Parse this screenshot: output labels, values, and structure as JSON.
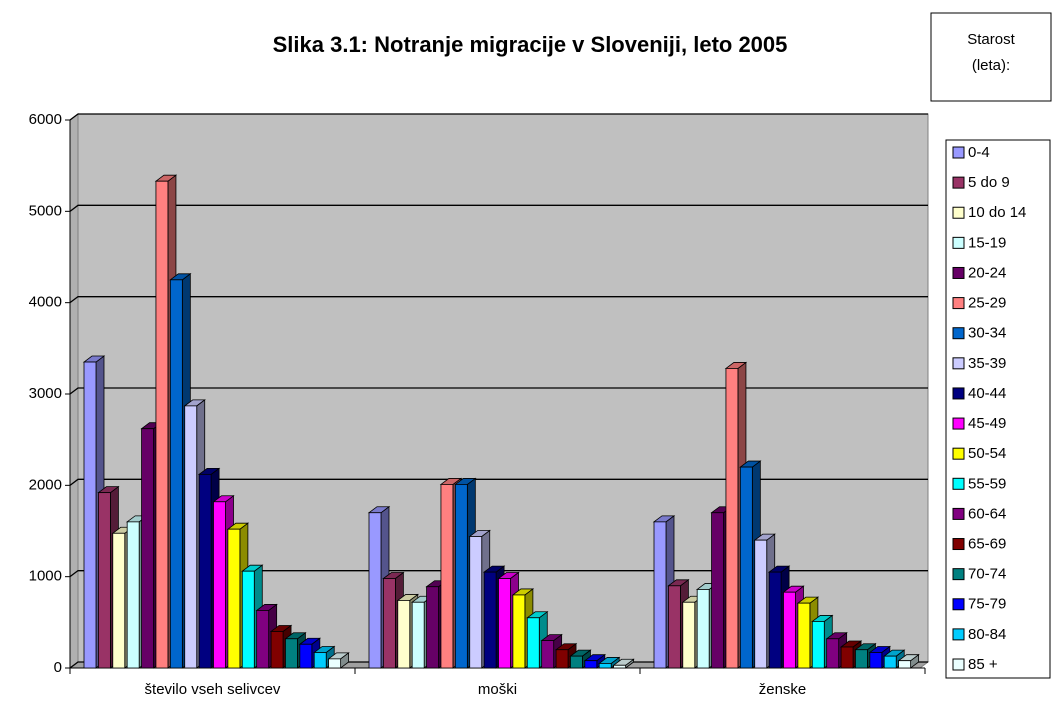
{
  "chart_data": {
    "type": "bar3d",
    "title": "Slika 3.1: Notranje migracije v Sloveniji, leto 2005",
    "legend_title": [
      "Starost",
      "(leta):"
    ],
    "categories": [
      "število vseh selivcev",
      "moški",
      "ženske"
    ],
    "ylim": [
      0,
      6000
    ],
    "yticks": [
      0,
      1000,
      2000,
      3000,
      4000,
      5000,
      6000
    ],
    "grid": true,
    "legend": "right",
    "series": [
      {
        "name": "0-4",
        "color": "#9999ff",
        "values": [
          3350,
          1700,
          1600
        ]
      },
      {
        "name": "5 do 9",
        "color": "#993366",
        "values": [
          1920,
          980,
          900
        ]
      },
      {
        "name": "10 do 14",
        "color": "#ffffcc",
        "values": [
          1475,
          740,
          720
        ]
      },
      {
        "name": "15-19",
        "color": "#ccffff",
        "values": [
          1600,
          720,
          860
        ]
      },
      {
        "name": "20-24",
        "color": "#660066",
        "values": [
          2620,
          890,
          1700
        ]
      },
      {
        "name": "25-29",
        "color": "#ff8080",
        "values": [
          5330,
          2010,
          3280
        ]
      },
      {
        "name": "30-34",
        "color": "#0066cc",
        "values": [
          4250,
          2010,
          2200
        ]
      },
      {
        "name": "35-39",
        "color": "#ccccff",
        "values": [
          2870,
          1440,
          1400
        ]
      },
      {
        "name": "40-44",
        "color": "#000080",
        "values": [
          2120,
          1050,
          1050
        ]
      },
      {
        "name": "45-49",
        "color": "#ff00ff",
        "values": [
          1820,
          980,
          830
        ]
      },
      {
        "name": "50-54",
        "color": "#ffff00",
        "values": [
          1520,
          800,
          710
        ]
      },
      {
        "name": "55-59",
        "color": "#00ffff",
        "values": [
          1060,
          550,
          510
        ]
      },
      {
        "name": "60-64",
        "color": "#800080",
        "values": [
          630,
          300,
          320
        ]
      },
      {
        "name": "65-69",
        "color": "#800000",
        "values": [
          400,
          200,
          230
        ]
      },
      {
        "name": "70-74",
        "color": "#008080",
        "values": [
          320,
          130,
          200
        ]
      },
      {
        "name": "75-79",
        "color": "#0000ff",
        "values": [
          260,
          80,
          170
        ]
      },
      {
        "name": "80-84",
        "color": "#00ccff",
        "values": [
          170,
          50,
          130
        ]
      },
      {
        "name": "85 +",
        "color": "#eaffff",
        "values": [
          100,
          30,
          80
        ]
      }
    ]
  }
}
